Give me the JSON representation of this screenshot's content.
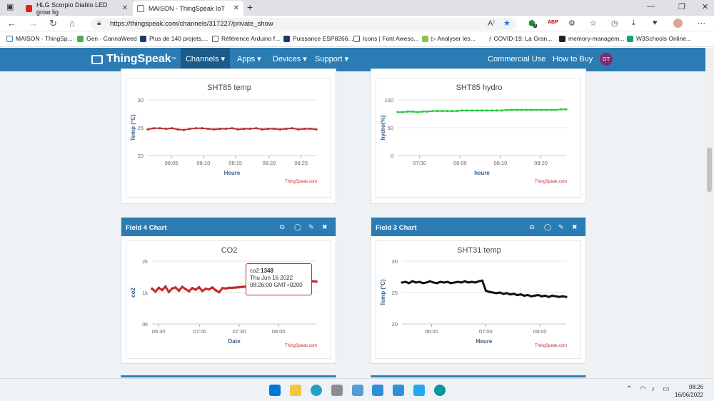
{
  "browser": {
    "tabs": [
      {
        "title": "HLG Scorpio Diablo LED grow lig",
        "favicon": "youtube-icon",
        "color": "#e62117"
      },
      {
        "title": "MAISON - ThingSpeak IoT",
        "favicon": "thingspeak-icon",
        "color": "#2c7cb4"
      }
    ],
    "url": "https://thingspeak.com/channels/317227/private_show",
    "bookmarks": [
      {
        "label": "MAISON - ThingSp...",
        "icon": "bookmark-icon"
      },
      {
        "label": "Gen - CannaWeed",
        "icon": "leaf-icon"
      },
      {
        "label": "Plus de 140 projets,...",
        "icon": "r-icon"
      },
      {
        "label": "Référence Arduino f...",
        "icon": "page-icon"
      },
      {
        "label": "Puissance ESP8266...",
        "icon": "r-icon"
      },
      {
        "label": "Icons | Font Aweso...",
        "icon": "page-icon"
      },
      {
        "label": "▷ Analyser les...",
        "icon": "gn-icon"
      },
      {
        "label": "COVID-19: La Gran...",
        "icon": "f-icon"
      },
      {
        "label": "memory-managem...",
        "icon": "s-icon"
      },
      {
        "label": "W3Schools Online...",
        "icon": "w3-icon"
      }
    ],
    "ext_badge": "3"
  },
  "nav": {
    "logo": "ThingSpeak",
    "logo_tm": "™",
    "channels": "Channels ▾",
    "apps": "Apps ▾",
    "devices": "Devices ▾",
    "support": "Support ▾",
    "commercial": "Commercial Use",
    "buy": "How to Buy",
    "avatar": "GT",
    "colors": {
      "primary": "#2c7cb4",
      "active": "#1b5a89"
    }
  },
  "cards": [
    {
      "header": "",
      "credit": "ThingSpeak.com"
    },
    {
      "header": "",
      "credit": "ThingSpeak.com"
    },
    {
      "header": "Field 4 Chart",
      "credit": "ThingSpeak.com"
    },
    {
      "header": "Field 3 Chart",
      "credit": "ThingSpeak.com"
    }
  ],
  "chart_data": [
    {
      "type": "line",
      "title": "SHT85 temp",
      "xlabel": "Heure",
      "ylabel": "Temp (°C)",
      "yticks": [
        "30",
        "25",
        "20"
      ],
      "ylim": [
        20,
        30
      ],
      "xticks": [
        "08:05",
        "08:10",
        "08:15",
        "08:20",
        "08:25"
      ],
      "color": "#b82e2e",
      "series": [
        {
          "values": [
            24.7,
            24.9,
            24.9,
            24.8,
            24.9,
            24.7,
            24.6,
            24.8,
            24.9,
            24.9,
            24.8,
            24.7,
            24.8,
            24.8,
            24.9,
            24.7,
            24.8,
            24.8,
            24.9,
            24.7,
            24.8,
            24.8,
            24.7,
            24.8,
            24.9,
            24.7,
            24.8,
            24.8,
            24.7
          ]
        }
      ]
    },
    {
      "type": "line",
      "title": "SHT85 hydro",
      "xlabel": "heure",
      "ylabel": "hydro(%)",
      "yticks": [
        "100",
        "50",
        "0"
      ],
      "ylim": [
        0,
        100
      ],
      "xticks": [
        "07:50",
        "08:00",
        "08:10",
        "08:20"
      ],
      "color": "#2ecc40",
      "series": [
        {
          "values": [
            78,
            78,
            79,
            79,
            78,
            79,
            79,
            80,
            80,
            80,
            80,
            80,
            80,
            81,
            81,
            81,
            81,
            81,
            81,
            81,
            81,
            81,
            82,
            82,
            82,
            82,
            82,
            82,
            82,
            82,
            82,
            82,
            82,
            83,
            83
          ]
        }
      ]
    },
    {
      "type": "line",
      "title": "CO2",
      "xlabel": "Date",
      "ylabel": "co2",
      "yticks": [
        "2k",
        "1k",
        "0k"
      ],
      "ylim": [
        0,
        2000
      ],
      "xticks": [
        "06:30",
        "07:00",
        "07:30",
        "08:00"
      ],
      "color": "#c62828",
      "series": [
        {
          "values": [
            1120,
            1030,
            1150,
            1080,
            1190,
            1020,
            1130,
            1160,
            1060,
            1180,
            1110,
            1040,
            1140,
            1090,
            1170,
            1050,
            1120,
            1100,
            1160,
            1070,
            1010,
            1140,
            1130,
            1150,
            1150,
            1160,
            1170,
            1180,
            1190,
            1200,
            1210,
            1220,
            1230,
            1240,
            1250,
            1260,
            1270,
            1280,
            1290,
            1300,
            1310,
            1320,
            1330,
            1340,
            1345,
            1348,
            1350,
            1355,
            1360,
            1348
          ]
        }
      ],
      "tooltip": {
        "label": "co2:",
        "value": "1348",
        "date": "Thu Jun 16 2022",
        "time": "08:26:00 GMT+0200"
      }
    },
    {
      "type": "line",
      "title": "SHT31 temp",
      "xlabel": "Heure",
      "ylabel": "Temp (°C)",
      "yticks": [
        "30",
        "25",
        "20"
      ],
      "ylim": [
        20,
        30
      ],
      "xticks": [
        "06:00",
        "07:00",
        "08:00"
      ],
      "color": "#111111",
      "series": [
        {
          "values": [
            26.6,
            26.7,
            26.5,
            26.8,
            26.6,
            26.7,
            26.5,
            26.6,
            26.8,
            26.6,
            26.5,
            26.7,
            26.6,
            26.7,
            26.5,
            26.6,
            26.7,
            26.6,
            26.8,
            26.6,
            26.7,
            26.6,
            26.8,
            26.9,
            25.3,
            25.1,
            25.0,
            24.9,
            25.0,
            24.8,
            24.9,
            24.7,
            24.8,
            24.6,
            24.7,
            24.5,
            24.6,
            24.4,
            24.5,
            24.6,
            24.4,
            24.5,
            24.3,
            24.5,
            24.4,
            24.3,
            24.4,
            24.3
          ]
        }
      ]
    }
  ],
  "taskbar": {
    "time": "08:26",
    "date": "16/06/2022"
  }
}
